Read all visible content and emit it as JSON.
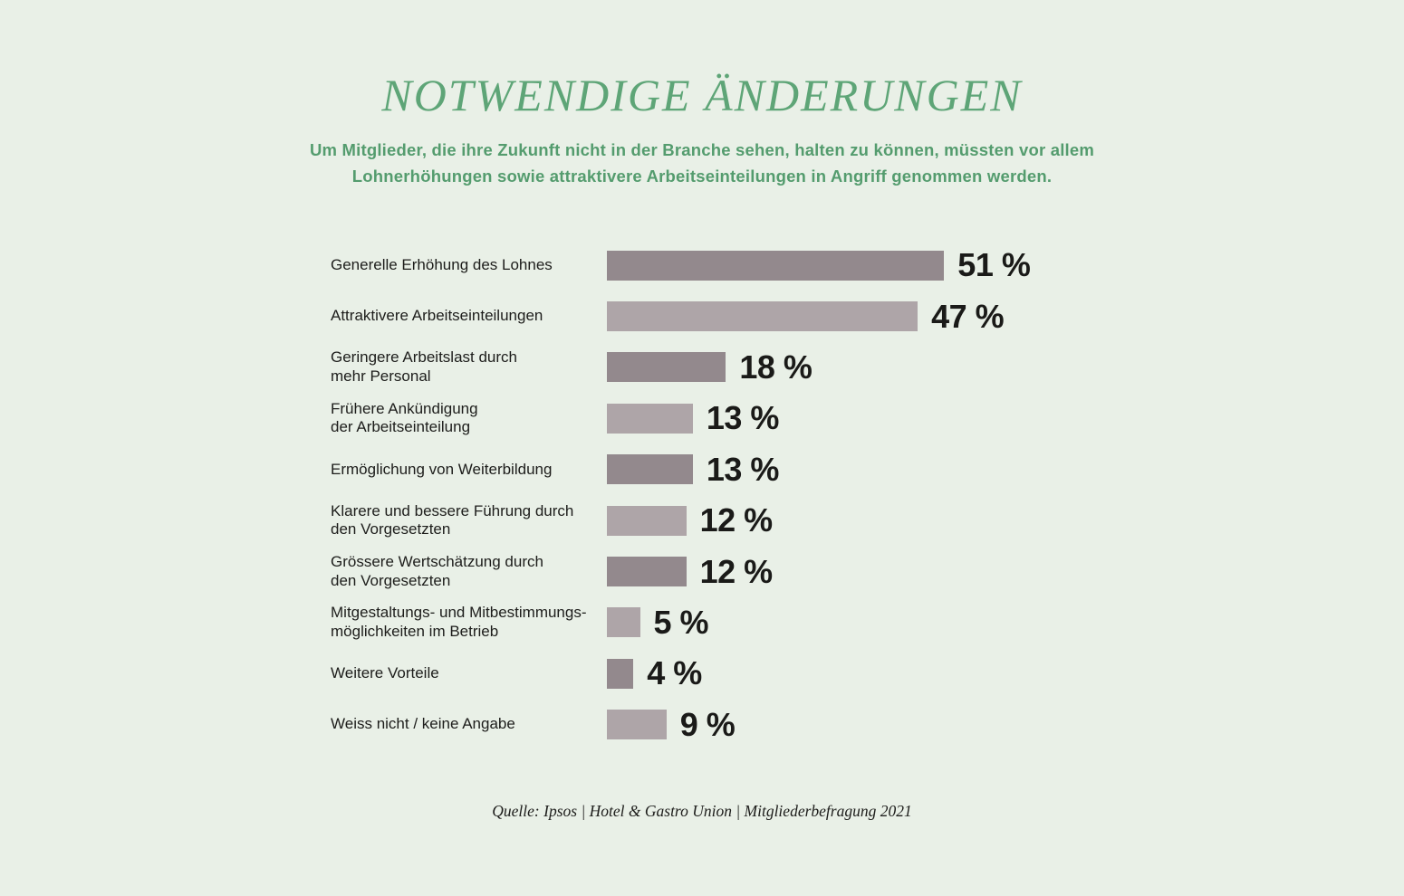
{
  "page": {
    "background": "#e9f0e7",
    "text_color": "#1d1d1b"
  },
  "header": {
    "title": "NOTWENDIGE ÄNDERUNGEN",
    "title_color": "#5ea577",
    "subtitle": "Um Mitglieder, die ihre Zukunft nicht in der Branche sehen, halten zu können, müssten vor allem\nLohnerhöhungen sowie attraktivere Arbeitseinteilungen in Angriff genommen werden.",
    "subtitle_color": "#549c6e"
  },
  "chart_data": {
    "type": "bar",
    "orientation": "horizontal",
    "title": "NOTWENDIGE ÄNDERUNGEN",
    "xlabel": "",
    "ylabel": "",
    "unit": "%",
    "xlim": [
      0,
      55
    ],
    "grid": false,
    "legend": false,
    "categories": [
      "Generelle Erhöhung des Lohnes",
      "Attraktivere Arbeitseinteilungen",
      "Geringere Arbeitslast durch\nmehr Personal",
      "Frühere Ankündigung\nder Arbeitseinteilung",
      "Ermöglichung von Weiterbildung",
      "Klarere und bessere Führung durch\nden Vorgesetzten",
      "Grössere Wertschätzung durch\nden Vorgesetzten",
      "Mitgestaltungs- und Mitbestimmungs-\nmöglichkeiten im Betrieb",
      "Weitere Vorteile",
      "Weiss nicht / keine Angabe"
    ],
    "values": [
      51,
      47,
      18,
      13,
      13,
      12,
      12,
      5,
      4,
      9
    ],
    "value_labels": [
      "51 %",
      "47 %",
      "18 %",
      "13 %",
      "13 %",
      "12 %",
      "12 %",
      "5 %",
      "4 %",
      "9 %"
    ],
    "bar_colors": [
      "#93898d",
      "#aea5a8",
      "#93898d",
      "#aea5a8",
      "#93898d",
      "#aea5a8",
      "#93898d",
      "#aea5a8",
      "#93898d",
      "#aea5a8"
    ],
    "bar_color_dark": "#93898d",
    "bar_color_light": "#aea5a8"
  },
  "footer": {
    "source": "Quelle: Ipsos | Hotel & Gastro Union | Mitgliederbefragung 2021"
  }
}
